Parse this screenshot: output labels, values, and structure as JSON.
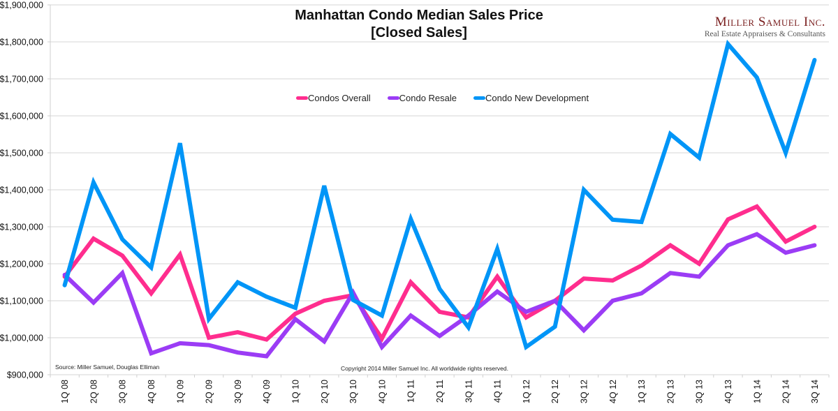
{
  "chart_data": {
    "type": "line",
    "title": "Manhattan Condo Median Sales Price",
    "subtitle": "[Closed Sales]",
    "xlabel": "",
    "ylabel": "",
    "ylim": [
      900000,
      1900000
    ],
    "yticks": [
      900000,
      1000000,
      1100000,
      1200000,
      1300000,
      1400000,
      1500000,
      1600000,
      1700000,
      1800000,
      1900000
    ],
    "ytick_labels": [
      "$900,000",
      "$1,000,000",
      "$1,100,000",
      "$1,200,000",
      "$1,300,000",
      "$1,400,000",
      "$1,500,000",
      "$1,600,000",
      "$1,700,000",
      "$1,800,000",
      "$1,900,000"
    ],
    "grid": true,
    "legend_position": "top-center",
    "categories": [
      "1Q 08",
      "2Q 08",
      "3Q 08",
      "4Q 08",
      "1Q 09",
      "2Q 09",
      "3Q 09",
      "4Q 09",
      "1Q 10",
      "2Q 10",
      "3Q 10",
      "4Q 10",
      "1Q 11",
      "2Q 11",
      "3Q 11",
      "4Q 11",
      "1Q 12",
      "2Q 12",
      "3Q 12",
      "4Q 12",
      "1Q 13",
      "2Q 13",
      "3Q 13",
      "4Q 13",
      "1Q 14",
      "2Q 14",
      "3Q 14"
    ],
    "series": [
      {
        "name": "Condos Overall",
        "color": "#ff2d8e",
        "values": [
          1165000,
          1268000,
          1222000,
          1120000,
          1225000,
          1000000,
          1015000,
          995000,
          1065000,
          1100000,
          1115000,
          998000,
          1150000,
          1070000,
          1055000,
          1165000,
          1055000,
          1100000,
          1160000,
          1155000,
          1195000,
          1250000,
          1200000,
          1320000,
          1355000,
          1260000,
          1300000
        ]
      },
      {
        "name": "Condo Resale",
        "color": "#9b3cf5",
        "values": [
          1170000,
          1095000,
          1175000,
          958000,
          985000,
          980000,
          960000,
          950000,
          1050000,
          990000,
          1122000,
          975000,
          1060000,
          1005000,
          1060000,
          1125000,
          1070000,
          1100000,
          1020000,
          1100000,
          1120000,
          1175000,
          1165000,
          1250000,
          1280000,
          1230000,
          1250000
        ]
      },
      {
        "name": "Condo New Development",
        "color": "#0095f7",
        "values": [
          1142000,
          1420000,
          1266000,
          1190000,
          1526000,
          1051000,
          1150000,
          1111000,
          1081000,
          1411000,
          1102000,
          1060000,
          1321000,
          1132000,
          1028000,
          1240000,
          975000,
          1030000,
          1400000,
          1319000,
          1313000,
          1551000,
          1487000,
          1794000,
          1704000,
          1500000,
          1751000
        ]
      }
    ]
  },
  "header": {
    "title_line1": "Manhattan Condo Median Sales Price",
    "title_line2": "[Closed Sales]"
  },
  "logo": {
    "name": "Miller Samuel Inc.",
    "tagline": "Real Estate Appraisers & Consultants"
  },
  "footer": {
    "source": "Source: Miller Samuel, Douglas Elliman",
    "copyright": "Copyright 2014 Miller Samuel Inc.  All worldwide rights reserved."
  }
}
